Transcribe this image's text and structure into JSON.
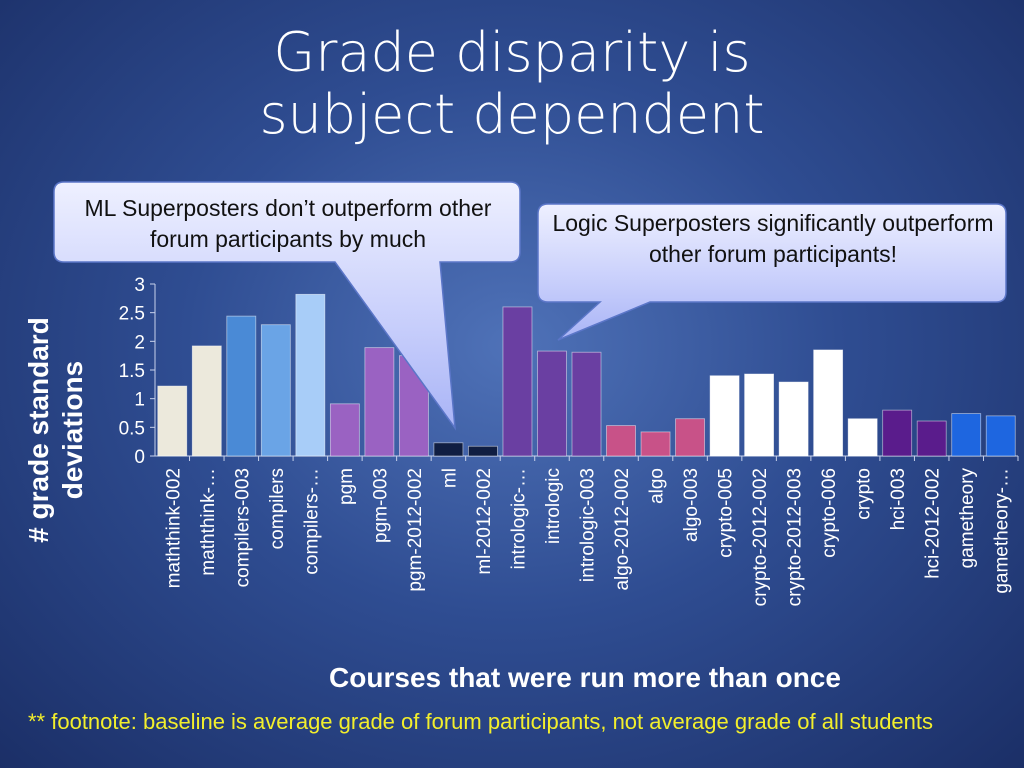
{
  "slide": {
    "title_line1": "Grade disparity is",
    "title_line2": "subject dependent",
    "callout_ml": "ML Superposters don’t outperform other forum participants by much",
    "callout_logic": "Logic Superposters significantly outperform other forum participants!",
    "footnote": "** footnote: baseline is average grade of forum participants, not average grade of all students"
  },
  "chart_data": {
    "type": "bar",
    "title": "",
    "xlabel": "Courses that were run more than once",
    "ylabel": "# grade standard deviations",
    "ylim": [
      0,
      3
    ],
    "yticks": [
      "0",
      "0.5",
      "1",
      "1.5",
      "2",
      "2.5",
      "3"
    ],
    "grid": false,
    "categories": [
      "maththink-002",
      "maththink-…",
      "compilers-003",
      "compilers",
      "compilers-…",
      "pgm",
      "pgm-003",
      "pgm-2012-002",
      "ml",
      "ml-2012-002",
      "intrologic-…",
      "intrologic",
      "intrologic-003",
      "algo-2012-002",
      "algo",
      "algo-003",
      "crypto-005",
      "crypto-2012-002",
      "crypto-2012-003",
      "crypto-006",
      "crypto",
      "hci-003",
      "hci-2012-002",
      "gametheory",
      "gametheory-…"
    ],
    "values": [
      1.22,
      1.92,
      2.44,
      2.29,
      2.82,
      0.91,
      1.89,
      1.75,
      0.23,
      0.17,
      2.6,
      1.83,
      1.81,
      0.53,
      0.42,
      0.65,
      1.4,
      1.43,
      1.29,
      1.85,
      0.65,
      0.8,
      0.61,
      0.74,
      0.7
    ],
    "bar_colors": [
      "#ece9dc",
      "#ece9dc",
      "#4a8ad6",
      "#6aa4e6",
      "#a8cdf8",
      "#9a62c2",
      "#9a62c2",
      "#9a62c2",
      "#101e42",
      "#101e42",
      "#6a3fa2",
      "#6a3fa2",
      "#6a3fa2",
      "#c85288",
      "#c85288",
      "#c85288",
      "#ffffff",
      "#ffffff",
      "#ffffff",
      "#ffffff",
      "#ffffff",
      "#5a1c8c",
      "#5a1c8c",
      "#1e66e0",
      "#1e66e0"
    ]
  }
}
